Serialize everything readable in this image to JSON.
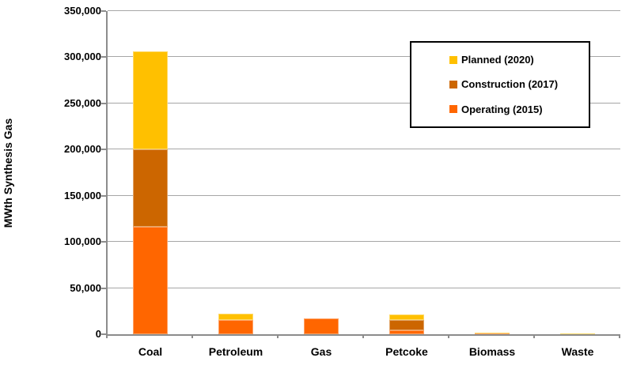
{
  "chart_data": {
    "type": "bar",
    "stacked": true,
    "title": "",
    "xlabel": "",
    "ylabel": "MWth Synthesis Gas",
    "ylim": [
      0,
      350000
    ],
    "ytick_step": 50000,
    "ytick_labels": [
      "0",
      "50,000",
      "100,000",
      "150,000",
      "200,000",
      "250,000",
      "300,000",
      "350,000"
    ],
    "grid": "horizontal",
    "categories": [
      "Coal",
      "Petroleum",
      "Gas",
      "Petcoke",
      "Biomass",
      "Waste"
    ],
    "series": [
      {
        "name": "Operating (2015)",
        "color": "#FF6600",
        "values": [
          116000,
          15500,
          17000,
          4000,
          500,
          0
        ]
      },
      {
        "name": "Construction (2017)",
        "color": "#CC6600",
        "values": [
          84000,
          0,
          0,
          11000,
          0,
          0
        ]
      },
      {
        "name": "Planned (2020)",
        "color": "#FFC000",
        "values": [
          106000,
          7000,
          0,
          6500,
          1500,
          1000
        ]
      }
    ],
    "totals": [
      306000,
      22500,
      17000,
      21500,
      2000,
      1000
    ],
    "legend": {
      "position": "upper-right",
      "items": [
        {
          "label": "Planned (2020)",
          "color": "#FFC000"
        },
        {
          "label": "Construction (2017)",
          "color": "#CC6600"
        },
        {
          "label": "Operating (2015)",
          "color": "#FF6600"
        }
      ]
    },
    "colors": {
      "background": "#FFFFFF",
      "gridline": "#A6A6A6",
      "axis": "#8C8C8C",
      "text": "#000000"
    }
  }
}
